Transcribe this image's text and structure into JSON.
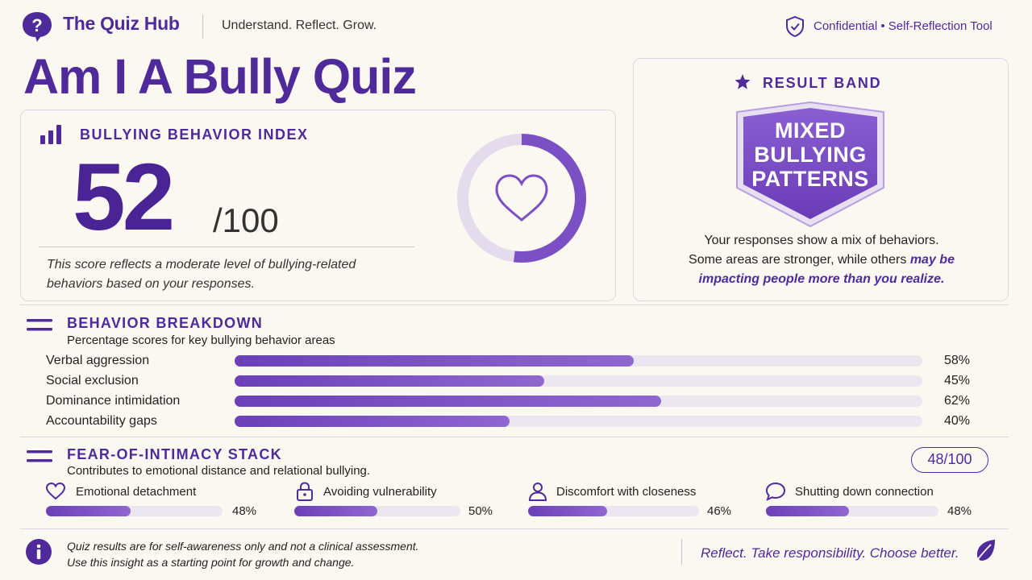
{
  "header": {
    "brand": "The Quiz Hub",
    "tagline": "Understand. Reflect. Grow.",
    "confidential": "Confidential • Self-Reflection Tool"
  },
  "title": "Am I A Bully Quiz",
  "index": {
    "title": "BULLYING BEHAVIOR INDEX",
    "score": "52",
    "score_max": "/100",
    "score_value": 52,
    "description": "This score reflects a moderate level of bullying-related behaviors based on your responses."
  },
  "result_band": {
    "title": "RESULT BAND",
    "badge_lines": [
      "MIXED",
      "BULLYING",
      "PATTERNS"
    ],
    "desc_line1": "Your responses show a mix of behaviors.",
    "desc_line2": "Some areas are stronger, while others",
    "desc_highlight1": "may be",
    "desc_highlight2": "impacting people more than you realize."
  },
  "breakdown": {
    "title": "BEHAVIOR BREAKDOWN",
    "subtitle": "Percentage scores for key bullying behavior areas",
    "items": [
      {
        "label": "Verbal aggression",
        "value": 58,
        "pct": "58%"
      },
      {
        "label": "Social exclusion",
        "value": 45,
        "pct": "45%"
      },
      {
        "label": "Dominance intimidation",
        "value": 62,
        "pct": "62%"
      },
      {
        "label": "Accountability gaps",
        "value": 40,
        "pct": "40%"
      }
    ]
  },
  "intimacy": {
    "title": "FEAR-OF-INTIMACY STACK",
    "subtitle": "Contributes to emotional distance and relational bullying.",
    "score": "48/100",
    "items": [
      {
        "label": "Emotional detachment",
        "value": 48,
        "pct": "48%",
        "icon": "heart-icon"
      },
      {
        "label": "Avoiding vulnerability",
        "value": 50,
        "pct": "50%",
        "icon": "lock-icon"
      },
      {
        "label": "Discomfort with closeness",
        "value": 46,
        "pct": "46%",
        "icon": "person-icon"
      },
      {
        "label": "Shutting down connection",
        "value": 48,
        "pct": "48%",
        "icon": "chat-bubble-icon"
      }
    ]
  },
  "footer": {
    "note_line1": "Quiz results are for self-awareness only and not a clinical assessment.",
    "note_line2": "Use this insight as a starting point for growth and change.",
    "motto": "Reflect. Take responsibility. Choose better."
  },
  "colors": {
    "accent": "#4f2a9a",
    "bar_fill": "#7b50c4",
    "bar_track": "#ece6f1",
    "background": "#fbf8f2"
  }
}
